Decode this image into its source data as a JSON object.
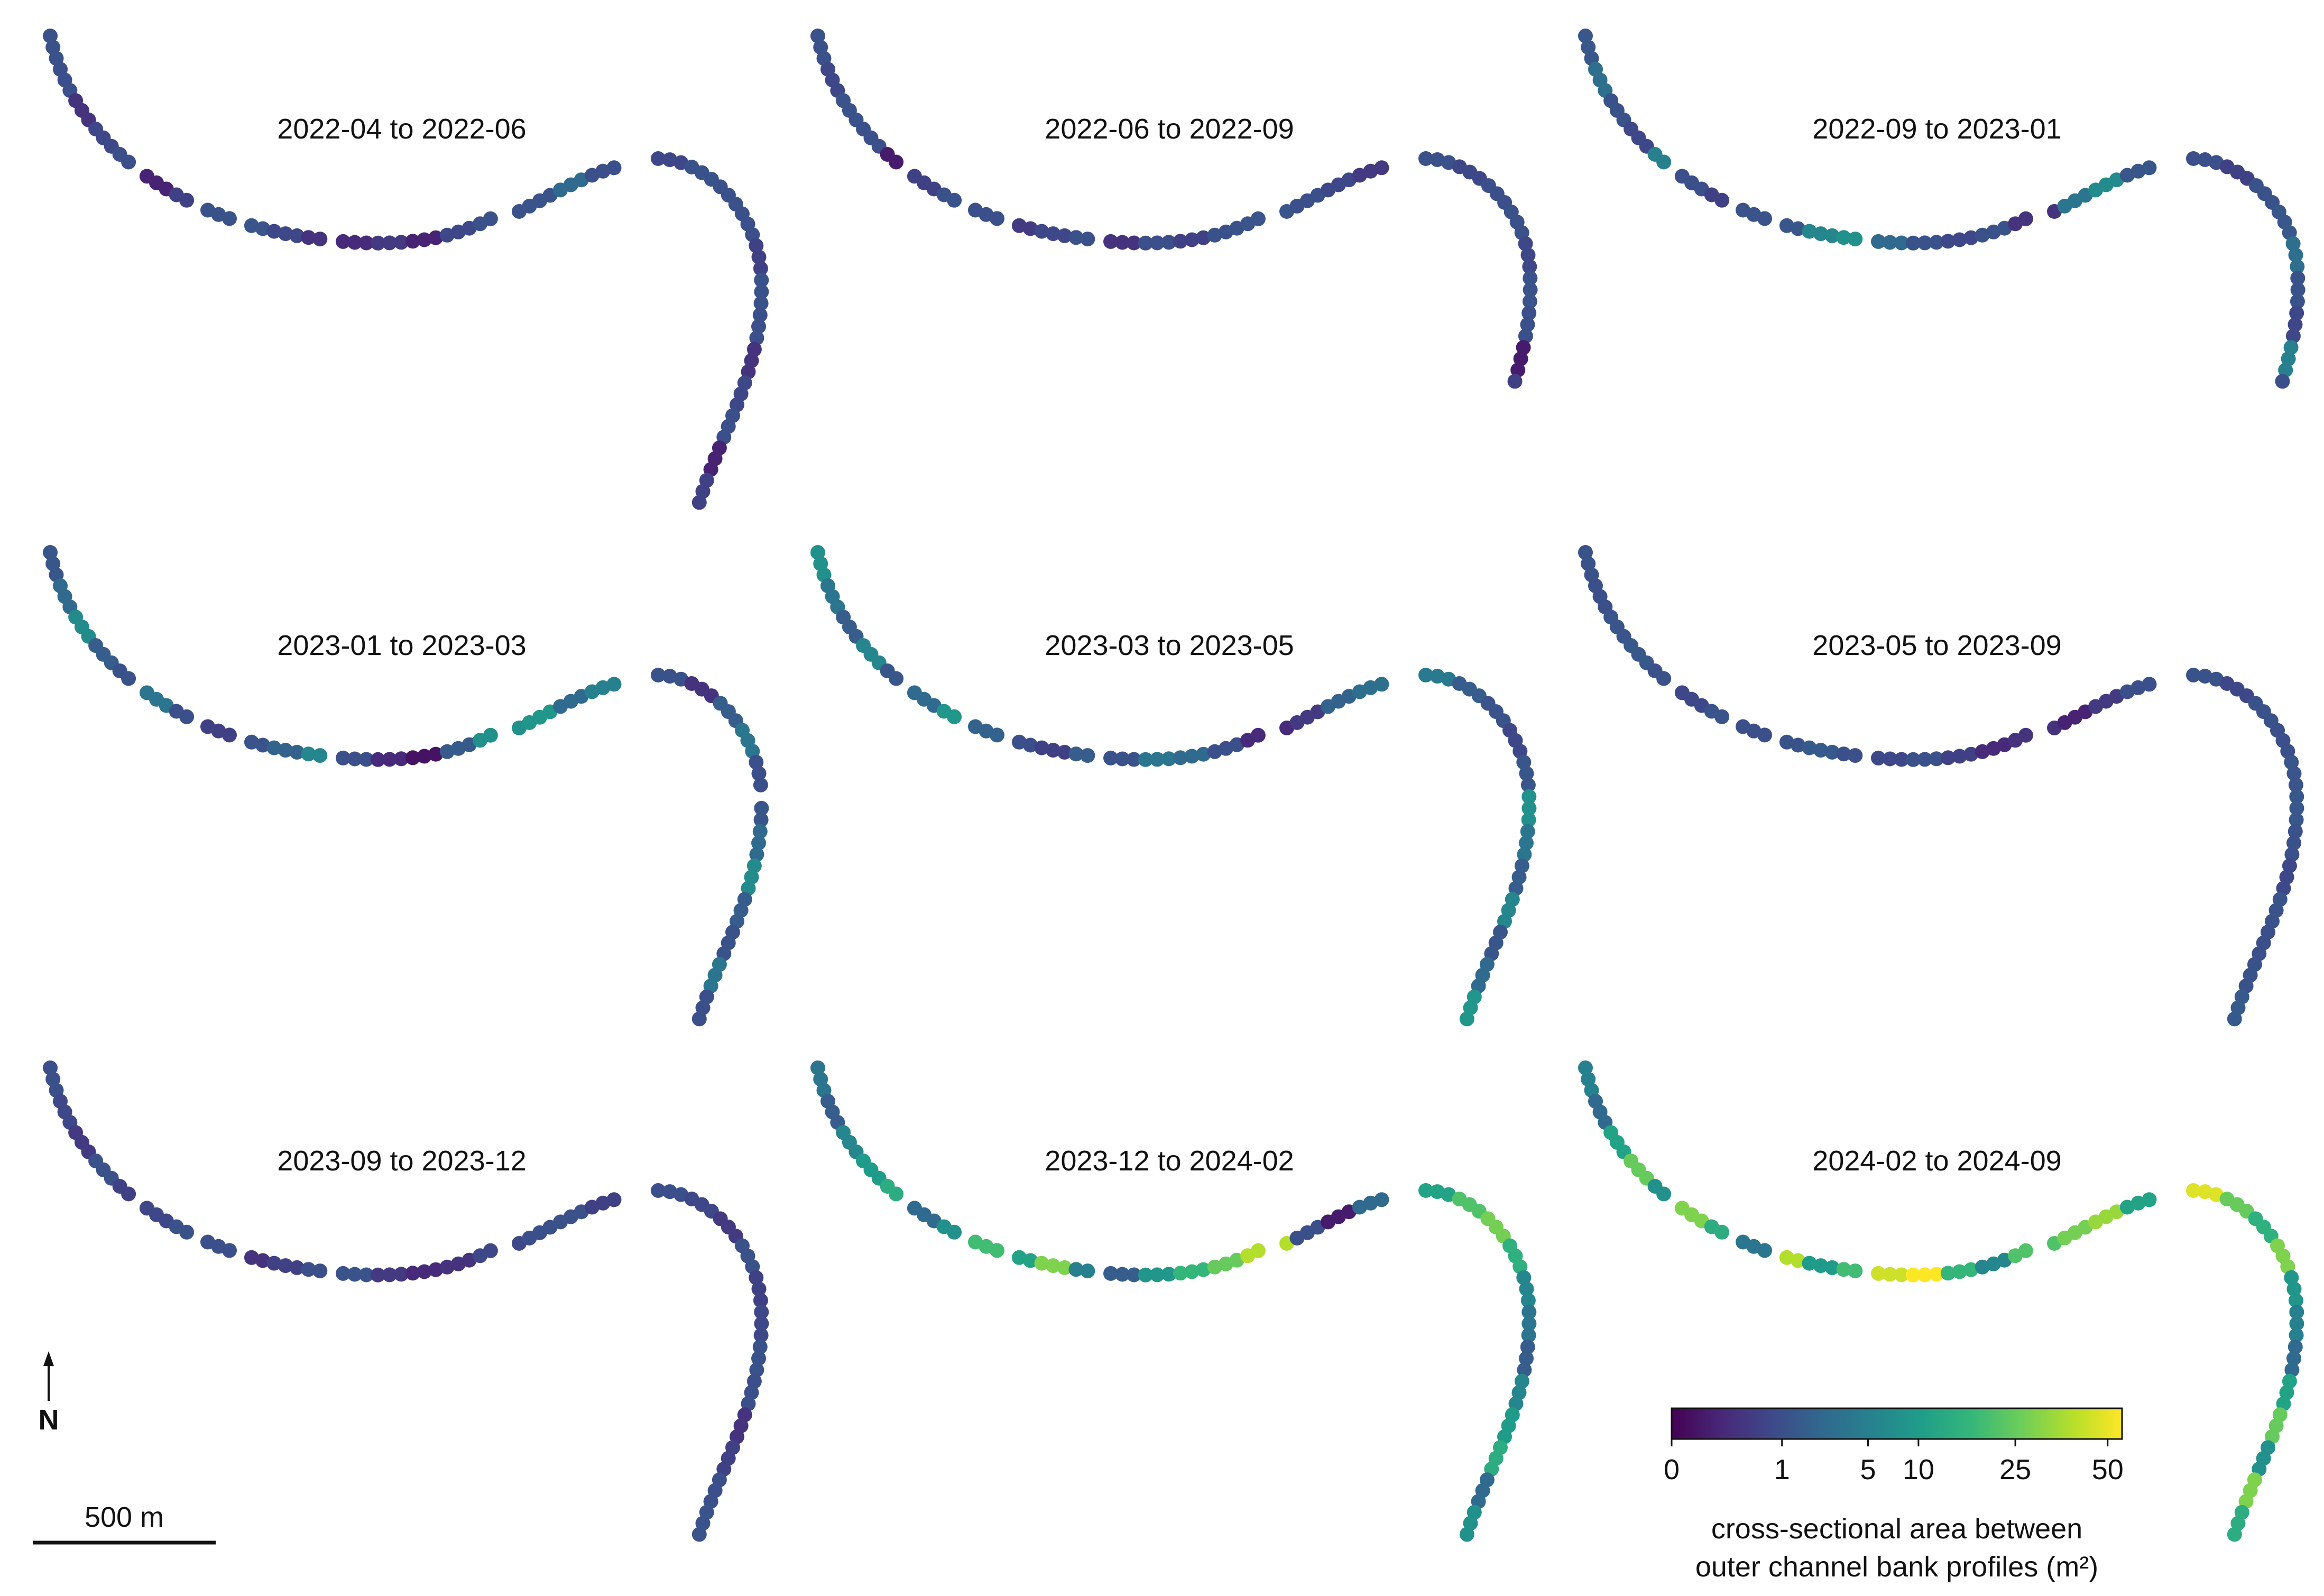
{
  "panels": [
    {
      "title": "2022-04 to 2022-06",
      "gap_south": false,
      "pattern": [
        1.2,
        1.0,
        0.6,
        0.9,
        1.0,
        0.4,
        0.8,
        1.2,
        1.4,
        0.9,
        0.6,
        0.5,
        0.7,
        0.4,
        0.9,
        1.1,
        1.3,
        3.0,
        1.0,
        0.9,
        1.2,
        1.1,
        1.0,
        0.8
      ]
    },
    {
      "title": "2022-06 to 2022-09",
      "gap_south": false,
      "pattern": [
        1.1,
        0.9,
        1.3,
        1.0,
        0.3,
        0.8,
        1.2,
        1.0,
        0.7,
        0.9,
        1.1,
        0.6,
        1.0,
        0.8,
        1.2,
        1.4,
        1.0,
        0.9,
        0.7,
        1.1,
        0.9,
        1.0
      ]
    },
    {
      "title": "2022-09 to 2023-01",
      "gap_south": false,
      "pattern": [
        1.6,
        3.5,
        1.2,
        0.9,
        5.0,
        1.0,
        0.8,
        1.3,
        1.5,
        6.0,
        8.0,
        3.0,
        1.2,
        0.9,
        1.1,
        0.6,
        4.0,
        7.0,
        1.5,
        1.0,
        0.8,
        1.2
      ]
    },
    {
      "title": "2023-01 to 2023-03",
      "gap_south": true,
      "pattern": [
        1.5,
        3.0,
        7.0,
        2.0,
        1.2,
        4.0,
        1.0,
        0.8,
        1.3,
        2.5,
        6.0,
        1.0,
        0.5,
        0.2,
        1.8,
        8.0,
        9.0,
        3.0,
        5.0,
        1.2,
        0.6,
        2.0,
        4.0,
        1.0
      ]
    },
    {
      "title": "2023-03 to 2023-05",
      "gap_south": false,
      "pattern": [
        8.0,
        4.0,
        2.0,
        6.0,
        1.5,
        3.0,
        9.0,
        2.5,
        1.0,
        0.8,
        2.0,
        1.2,
        4.0,
        3.0,
        1.0,
        0.5,
        0.7,
        2.5,
        3.5,
        4.5,
        2.0,
        1.3,
        0.9,
        1.5
      ]
    },
    {
      "title": "2023-05 to 2023-09",
      "gap_south": false,
      "pattern": [
        1.2,
        1.0,
        1.4,
        1.6,
        1.1,
        0.9,
        1.3,
        1.0,
        1.2,
        1.8,
        1.0,
        0.9,
        1.1,
        0.8,
        0.5,
        0.6,
        0.4,
        0.7,
        1.0,
        1.2,
        0.9
      ]
    },
    {
      "title": "2023-09 to 2023-12",
      "gap_south": false,
      "pattern": [
        1.0,
        0.9,
        0.7,
        1.1,
        0.8,
        0.9,
        1.2,
        1.0,
        0.6,
        0.8,
        1.0,
        1.3,
        0.7,
        0.5,
        0.6,
        0.9,
        1.0,
        1.1,
        0.8
      ]
    },
    {
      "title": "2023-12 to 2024-02",
      "gap_south": false,
      "pattern": [
        4.0,
        2.0,
        6.0,
        10.0,
        15.0,
        3.0,
        8.0,
        20.0,
        12.0,
        30.0,
        5.0,
        2.0,
        9.0,
        18.0,
        25.0,
        40.0,
        1.0,
        0.3,
        3.0,
        12.0,
        22.0,
        28.0,
        16.0,
        6.0
      ]
    },
    {
      "title": "2024-02 to 2024-09",
      "gap_south": false,
      "pattern": [
        5.0,
        3.0,
        12.0,
        25.0,
        8.0,
        30.0,
        15.0,
        4.0,
        40.0,
        10.0,
        20.0,
        45.0,
        55.0,
        18.0,
        6.0,
        22.0,
        28.0,
        35.0,
        12.0,
        48.0,
        25.0,
        16.0,
        30.0,
        9.0
      ]
    }
  ],
  "colorbar": {
    "ticks": [
      {
        "label": "0",
        "value": 0
      },
      {
        "label": "1",
        "value": 1
      },
      {
        "label": "5",
        "value": 5
      },
      {
        "label": "10",
        "value": 10
      },
      {
        "label": "25",
        "value": 25
      },
      {
        "label": "50",
        "value": 50
      }
    ],
    "max_value": 55,
    "label_line1": "cross-sectional area between",
    "label_line2": "outer channel bank profiles (m²)"
  },
  "north_label": "N",
  "scale_label": "500 m",
  "colors": {
    "viridis": [
      "#440154",
      "#482878",
      "#3e4989",
      "#31688e",
      "#26828e",
      "#1f9e89",
      "#35b779",
      "#6ece58",
      "#b5de2b",
      "#fde725"
    ]
  }
}
